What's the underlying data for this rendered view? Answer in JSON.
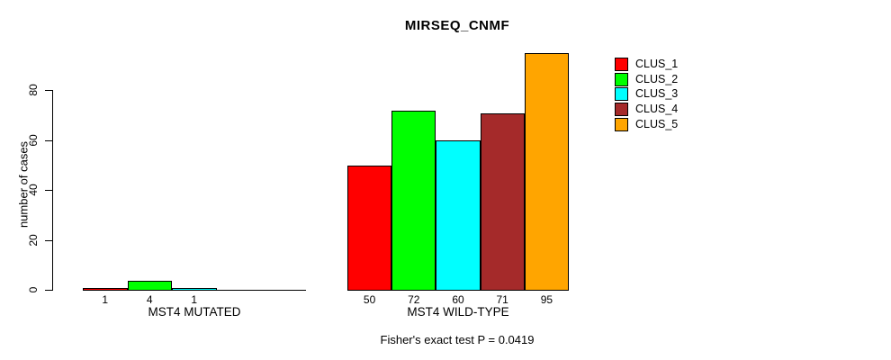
{
  "chart_data": {
    "type": "bar",
    "title": "MIRSEQ_CNMF",
    "ylabel": "number of cases",
    "yticks": [
      0,
      20,
      40,
      60,
      80
    ],
    "ylim": [
      0,
      95
    ],
    "grid": false,
    "legend_position": "right",
    "clusters": [
      {
        "name": "CLUS_1",
        "color": "#FF0000"
      },
      {
        "name": "CLUS_2",
        "color": "#00FF00"
      },
      {
        "name": "CLUS_3",
        "color": "#00FFFF"
      },
      {
        "name": "CLUS_4",
        "color": "#A52A2A"
      },
      {
        "name": "CLUS_5",
        "color": "#FFA500"
      }
    ],
    "groups": [
      {
        "label": "MST4 MUTATED",
        "categories": [
          "CLUS_1",
          "CLUS_2",
          "CLUS_3",
          "CLUS_4",
          "CLUS_5"
        ],
        "values": [
          1,
          4,
          1,
          0,
          0
        ],
        "bar_labels": [
          "1",
          "4",
          "1",
          "",
          ""
        ]
      },
      {
        "label": "MST4 WILD-TYPE",
        "categories": [
          "CLUS_1",
          "CLUS_2",
          "CLUS_3",
          "CLUS_4",
          "CLUS_5"
        ],
        "values": [
          50,
          72,
          60,
          71,
          95
        ],
        "bar_labels": [
          "50",
          "72",
          "60",
          "71",
          "95"
        ]
      }
    ],
    "annotation": "Fisher's exact test P = 0.0419"
  }
}
